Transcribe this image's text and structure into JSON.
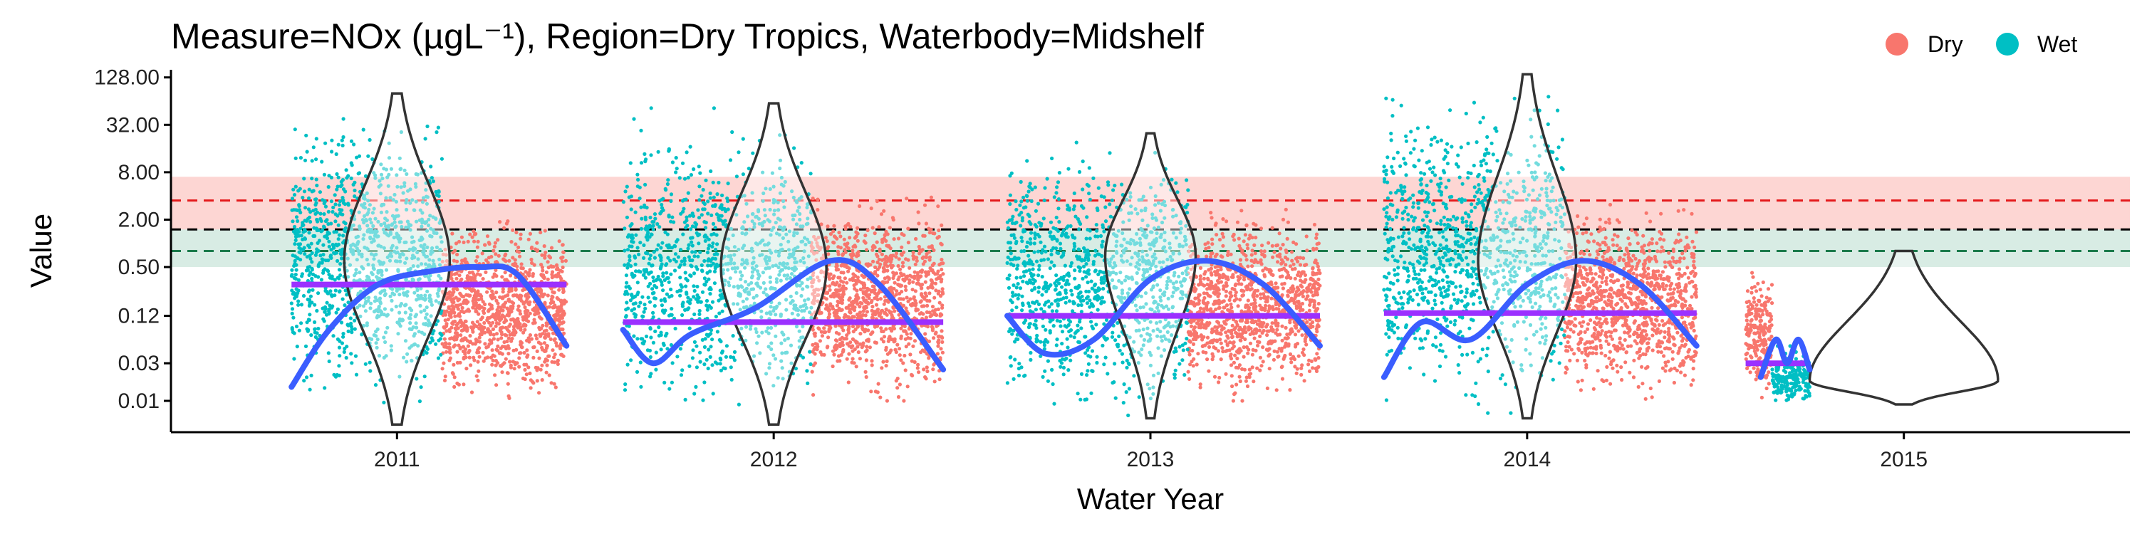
{
  "chart_data": {
    "type": "scatter",
    "title": "Measure=NOx (µgL⁻¹), Region=Dry Tropics, Waterbody=Midshelf",
    "xlabel": "Water Year",
    "ylabel": "Value",
    "y_scale": "log",
    "ylim": [
      0.004,
      160
    ],
    "yticks": [
      {
        "value": 0.01,
        "label": "0.01"
      },
      {
        "value": 0.03,
        "label": "0.03"
      },
      {
        "value": 0.12,
        "label": "0.12"
      },
      {
        "value": 0.5,
        "label": "0.50"
      },
      {
        "value": 2,
        "label": "2.00"
      },
      {
        "value": 8,
        "label": "8.00"
      },
      {
        "value": 32,
        "label": "32.00"
      },
      {
        "value": 128,
        "label": "128.00"
      }
    ],
    "xlim": [
      2010.4,
      2015.6
    ],
    "xticks": [
      {
        "value": 2011,
        "label": "2011"
      },
      {
        "value": 2012,
        "label": "2012"
      },
      {
        "value": 2013,
        "label": "2013"
      },
      {
        "value": 2014,
        "label": "2014"
      },
      {
        "value": 2015,
        "label": "2015"
      }
    ],
    "legend": {
      "placement": "top-right",
      "entries": [
        {
          "label": "Dry",
          "color": "#F8766D"
        },
        {
          "label": "Wet",
          "color": "#00BFC4"
        }
      ]
    },
    "reference_lines": [
      {
        "value": 3.5,
        "color": "#e41a1c",
        "style": "dashed"
      },
      {
        "value": 1.5,
        "color": "#000000",
        "style": "dashed"
      },
      {
        "value": 0.8,
        "color": "#1b7a4b",
        "style": "dashed"
      }
    ],
    "reference_bands": [
      {
        "y": [
          1.5,
          7
        ],
        "color": "#F8766D",
        "opacity": 0.3
      },
      {
        "y": [
          0.5,
          1.5
        ],
        "color": "#8fc9b2",
        "opacity": 0.35
      }
    ],
    "years": [
      {
        "year": 2011,
        "wet_range": [
          2010.72,
          2011.12
        ],
        "dry_range": [
          2011.12,
          2011.45
        ],
        "wet_obs": [
          0.008,
          70
        ],
        "dry_obs": [
          0.01,
          3
        ],
        "mean": 0.3,
        "trend": [
          [
            2010.72,
            0.015
          ],
          [
            2010.82,
            0.08
          ],
          [
            2010.95,
            0.3
          ],
          [
            2011.1,
            0.45
          ],
          [
            2011.22,
            0.5
          ],
          [
            2011.32,
            0.4
          ],
          [
            2011.45,
            0.05
          ]
        ],
        "violin": {
          "center": 2011.0,
          "half_width": 0.14,
          "ymin": 0.005,
          "ymax": 80,
          "mode": 0.6
        }
      },
      {
        "year": 2012,
        "wet_range": [
          2011.6,
          2012.1
        ],
        "dry_range": [
          2012.1,
          2012.45
        ],
        "wet_obs": [
          0.006,
          60
        ],
        "dry_obs": [
          0.01,
          6
        ],
        "mean": 0.1,
        "trend": [
          [
            2011.6,
            0.08
          ],
          [
            2011.68,
            0.03
          ],
          [
            2011.78,
            0.07
          ],
          [
            2011.95,
            0.15
          ],
          [
            2012.15,
            0.6
          ],
          [
            2012.28,
            0.3
          ],
          [
            2012.45,
            0.025
          ]
        ],
        "violin": {
          "center": 2012.0,
          "half_width": 0.14,
          "ymin": 0.005,
          "ymax": 60,
          "mode": 0.5
        }
      },
      {
        "year": 2013,
        "wet_range": [
          2012.62,
          2013.1
        ],
        "dry_range": [
          2013.1,
          2013.45
        ],
        "wet_obs": [
          0.006,
          30
        ],
        "dry_obs": [
          0.01,
          4
        ],
        "mean": 0.12,
        "trend": [
          [
            2012.62,
            0.12
          ],
          [
            2012.72,
            0.04
          ],
          [
            2012.85,
            0.06
          ],
          [
            2013.0,
            0.35
          ],
          [
            2013.15,
            0.6
          ],
          [
            2013.3,
            0.3
          ],
          [
            2013.45,
            0.05
          ]
        ],
        "violin": {
          "center": 2013.0,
          "half_width": 0.12,
          "ymin": 0.006,
          "ymax": 25,
          "mode": 0.7
        }
      },
      {
        "year": 2014,
        "wet_range": [
          2013.62,
          2014.1
        ],
        "dry_range": [
          2014.1,
          2014.45
        ],
        "wet_obs": [
          0.007,
          130
        ],
        "dry_obs": [
          0.01,
          5
        ],
        "mean": 0.13,
        "trend": [
          [
            2013.62,
            0.02
          ],
          [
            2013.72,
            0.1
          ],
          [
            2013.85,
            0.06
          ],
          [
            2014.0,
            0.3
          ],
          [
            2014.15,
            0.6
          ],
          [
            2014.3,
            0.3
          ],
          [
            2014.45,
            0.05
          ]
        ],
        "violin": {
          "center": 2014.0,
          "half_width": 0.13,
          "ymin": 0.006,
          "ymax": 140,
          "mode": 0.6
        }
      },
      {
        "year": 2015,
        "wet_range": [
          2014.65,
          2014.75
        ],
        "dry_range": [
          2014.58,
          2014.65
        ],
        "wet_obs": [
          0.01,
          0.06
        ],
        "dry_obs": [
          0.01,
          0.9
        ],
        "mean": 0.03,
        "trend": [
          [
            2014.62,
            0.02
          ],
          [
            2014.66,
            0.06
          ],
          [
            2014.69,
            0.03
          ],
          [
            2014.72,
            0.06
          ],
          [
            2014.75,
            0.025
          ]
        ],
        "violin": {
          "center": 2015.0,
          "half_width": 0.25,
          "ymin": 0.009,
          "ymax": 0.8,
          "mode": 0.018
        }
      }
    ]
  }
}
